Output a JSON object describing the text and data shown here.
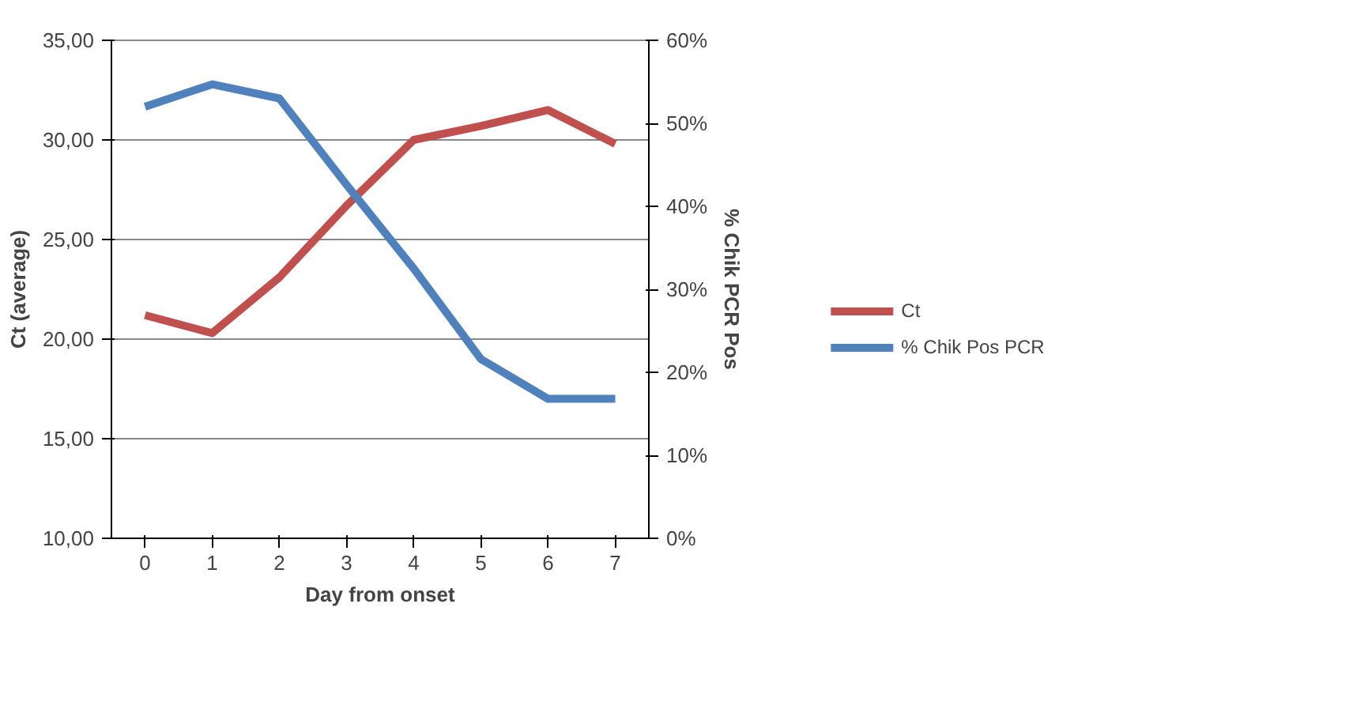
{
  "chart_data": {
    "type": "line",
    "xlabel": "Day from onset",
    "ylabel": "Ct (average)",
    "y2label": "% Chik PCR Pos",
    "categories": [
      "0",
      "1",
      "2",
      "3",
      "4",
      "5",
      "6",
      "7"
    ],
    "series": [
      {
        "name": "Ct",
        "color": "#c0504d",
        "values": [
          21.2,
          20.3,
          23.1,
          26.7,
          30.0,
          30.7,
          31.5,
          29.8
        ]
      },
      {
        "name": "% Chik Pos PCR",
        "color": "#4f81bd",
        "axis": "y2",
        "values": [
          52,
          54.7,
          53,
          42.6,
          32.5,
          21.6,
          16.8,
          16.8
        ]
      }
    ],
    "ylim": [
      10,
      35
    ],
    "yticks": [
      {
        "value": 10,
        "label": "10,00"
      },
      {
        "value": 15,
        "label": "15,00"
      },
      {
        "value": 20,
        "label": "20,00"
      },
      {
        "value": 25,
        "label": "25,00"
      },
      {
        "value": 30,
        "label": "30,00"
      },
      {
        "value": 35,
        "label": "35,00"
      }
    ],
    "y2lim": [
      0,
      60
    ],
    "y2ticks": [
      {
        "value": 0,
        "label": "0%"
      },
      {
        "value": 10,
        "label": "10%"
      },
      {
        "value": 20,
        "label": "20%"
      },
      {
        "value": 30,
        "label": "30%"
      },
      {
        "value": 40,
        "label": "40%"
      },
      {
        "value": 50,
        "label": "50%"
      },
      {
        "value": 60,
        "label": "60%"
      }
    ],
    "grid": "y",
    "legend": "right",
    "line_style": "solid",
    "marker": "none"
  }
}
